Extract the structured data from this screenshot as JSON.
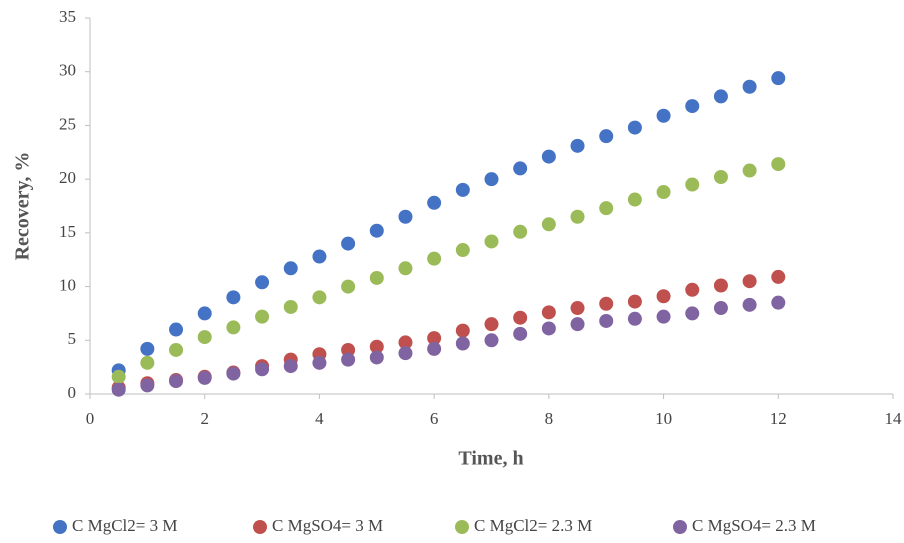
{
  "chart_data": {
    "type": "scatter",
    "x_label": "Time, h",
    "y_label": "Recovery, %",
    "x": [
      0.5,
      1,
      1.5,
      2,
      2.5,
      3,
      3.5,
      4,
      4.5,
      5,
      5.5,
      6,
      6.5,
      7,
      7.5,
      8,
      8.5,
      9,
      9.5,
      10,
      10.5,
      11,
      11.5,
      12
    ],
    "series": [
      {
        "name": "C MgCl2= 3 M",
        "color": "#4472c4",
        "values": [
          2.2,
          4.2,
          6.0,
          7.5,
          9.0,
          10.4,
          11.7,
          12.8,
          14.0,
          15.2,
          16.5,
          17.8,
          19.0,
          20.0,
          21.0,
          22.1,
          23.1,
          24.0,
          24.8,
          25.9,
          26.8,
          27.7,
          28.6,
          29.4
        ]
      },
      {
        "name": "C MgSO4= 3 M",
        "color": "#c0504d",
        "values": [
          0.6,
          1.0,
          1.3,
          1.6,
          2.0,
          2.6,
          3.2,
          3.7,
          4.1,
          4.4,
          4.8,
          5.2,
          5.9,
          6.5,
          7.1,
          7.6,
          8.0,
          8.4,
          8.6,
          9.1,
          9.7,
          10.1,
          10.5,
          10.9
        ]
      },
      {
        "name": "C MgCl2= 2.3 M",
        "color": "#9bbb59",
        "values": [
          1.6,
          2.9,
          4.1,
          5.3,
          6.2,
          7.2,
          8.1,
          9.0,
          10.0,
          10.8,
          11.7,
          12.6,
          13.4,
          14.2,
          15.1,
          15.8,
          16.5,
          17.3,
          18.1,
          18.8,
          19.5,
          20.2,
          20.8,
          21.4
        ]
      },
      {
        "name": "C MgSO4= 2.3 M",
        "color": "#8064a2",
        "values": [
          0.4,
          0.8,
          1.2,
          1.5,
          1.9,
          2.3,
          2.6,
          2.9,
          3.2,
          3.4,
          3.8,
          4.2,
          4.7,
          5.0,
          5.6,
          6.1,
          6.5,
          6.8,
          7.0,
          7.2,
          7.5,
          8.0,
          8.3,
          8.5
        ]
      }
    ],
    "xlim": [
      0,
      14
    ],
    "xticks": [
      0,
      2,
      4,
      6,
      8,
      10,
      12,
      14
    ],
    "ylim": [
      0,
      35
    ],
    "yticks": [
      0,
      5,
      10,
      15,
      20,
      25,
      30,
      35
    ],
    "legend": "bottom"
  }
}
